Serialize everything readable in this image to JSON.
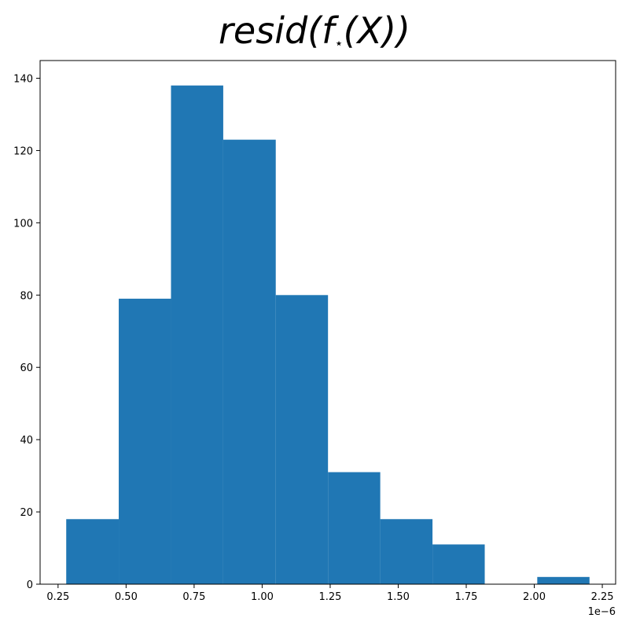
{
  "chart_data": {
    "type": "bar",
    "title_main": "resid(f",
    "title_sub": "⋆",
    "title_tail": "(X))",
    "xlabel": "",
    "ylabel": "",
    "x_offset_label": "1e−6",
    "bins": [
      {
        "x0": 0.28,
        "x1": 0.473,
        "count": 18
      },
      {
        "x0": 0.473,
        "x1": 0.665,
        "count": 79
      },
      {
        "x0": 0.665,
        "x1": 0.857,
        "count": 138
      },
      {
        "x0": 0.857,
        "x1": 1.05,
        "count": 123
      },
      {
        "x0": 1.05,
        "x1": 1.242,
        "count": 80
      },
      {
        "x0": 1.242,
        "x1": 1.434,
        "count": 31
      },
      {
        "x0": 1.434,
        "x1": 1.626,
        "count": 18
      },
      {
        "x0": 1.626,
        "x1": 1.818,
        "count": 11
      },
      {
        "x0": 1.818,
        "x1": 2.011,
        "count": 0
      },
      {
        "x0": 2.011,
        "x1": 2.203,
        "count": 2
      }
    ],
    "x_ticks": [
      "0.25",
      "0.50",
      "0.75",
      "1.00",
      "1.25",
      "1.50",
      "1.75",
      "2.00",
      "2.25"
    ],
    "x_tick_values": [
      0.25,
      0.5,
      0.75,
      1.0,
      1.25,
      1.5,
      1.75,
      2.0,
      2.25
    ],
    "y_ticks": [
      "0",
      "20",
      "40",
      "60",
      "80",
      "100",
      "120",
      "140"
    ],
    "y_tick_values": [
      0,
      20,
      40,
      60,
      80,
      100,
      120,
      140
    ],
    "xlim": [
      0.184,
      2.299
    ],
    "ylim": [
      0,
      144.9
    ],
    "bar_color": "#2077b4",
    "grid": false,
    "legend": "none"
  }
}
